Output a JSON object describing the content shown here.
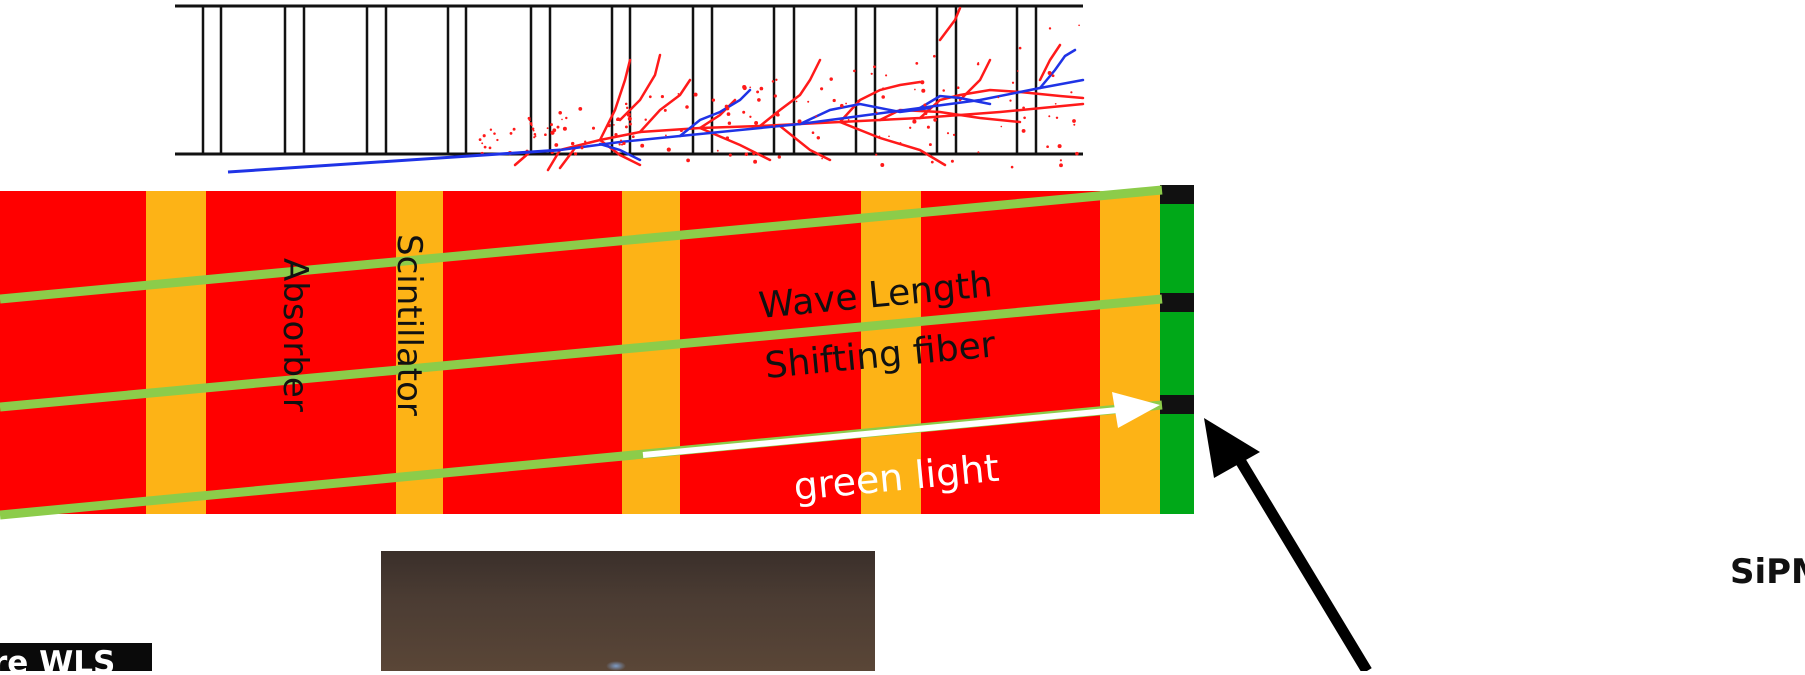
{
  "labels": {
    "absorber": "Absorber",
    "scintillator": "Scintillator",
    "wls_line1": "Wave Length",
    "wls_line2": "Shifting fiber",
    "green_light": "green light",
    "sipm": "SiPM",
    "photo_tag": "re WLS"
  },
  "colors": {
    "absorber": "#ff0000",
    "scintillator": "#fdb316",
    "fiber": "#8ccc4a",
    "readout_strip": "#00a818",
    "sipm_pad": "#111111",
    "shower_red": "#ff1a1a",
    "shower_blue": "#1f33e6",
    "arrow_light": "#ffffff",
    "arrow_pointer": "#000000"
  },
  "icons": {
    "sipm_pointer": "arrow-up-left-icon",
    "light_direction": "arrow-right-icon"
  }
}
